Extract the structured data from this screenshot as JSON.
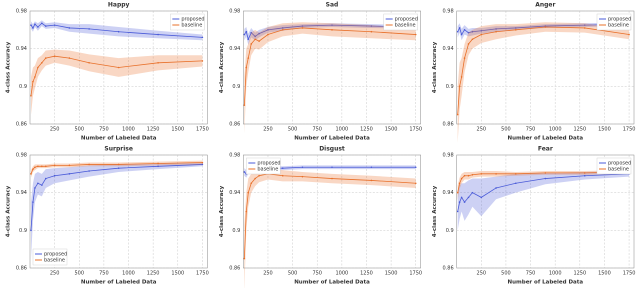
{
  "chart_data": [
    {
      "type": "line",
      "title": "Happy",
      "xlabel": "Number of Labeled Data",
      "ylabel": "4-class Accuracy",
      "x": [
        10,
        30,
        50,
        80,
        120,
        160,
        250,
        400,
        600,
        900,
        1300,
        1750
      ],
      "xlim": [
        0,
        1800
      ],
      "xticks": [
        250,
        500,
        750,
        1000,
        1250,
        1500,
        1750
      ],
      "ylim": [
        0.86,
        0.98
      ],
      "yticks": [
        0.86,
        0.9,
        0.94,
        0.98
      ],
      "grid": true,
      "legend": "upper right",
      "series": [
        {
          "name": "proposed",
          "color": "#4a5bd8",
          "values": [
            0.965,
            0.962,
            0.966,
            0.963,
            0.967,
            0.964,
            0.965,
            0.962,
            0.961,
            0.958,
            0.955,
            0.952
          ],
          "error": [
            0.004,
            0.004,
            0.003,
            0.004,
            0.003,
            0.003,
            0.003,
            0.004,
            0.005,
            0.005,
            0.004,
            0.003
          ]
        },
        {
          "name": "baseline",
          "color": "#e8702a",
          "values": [
            0.89,
            0.905,
            0.91,
            0.92,
            0.925,
            0.93,
            0.932,
            0.93,
            0.925,
            0.92,
            0.925,
            0.927
          ],
          "error": [
            0.02,
            0.015,
            0.012,
            0.01,
            0.008,
            0.008,
            0.007,
            0.008,
            0.009,
            0.01,
            0.008,
            0.006
          ]
        }
      ]
    },
    {
      "type": "line",
      "title": "Sad",
      "xlabel": "Number of Labeled Data",
      "ylabel": "4-class Accuracy",
      "x": [
        10,
        30,
        50,
        80,
        120,
        160,
        250,
        400,
        600,
        900,
        1300,
        1750
      ],
      "xlim": [
        0,
        1800
      ],
      "xticks": [
        250,
        500,
        750,
        1000,
        1250,
        1500,
        1750
      ],
      "ylim": [
        0.86,
        0.98
      ],
      "yticks": [
        0.86,
        0.9,
        0.94,
        0.98
      ],
      "grid": true,
      "legend": "upper right",
      "series": [
        {
          "name": "proposed",
          "color": "#4a5bd8",
          "values": [
            0.955,
            0.958,
            0.95,
            0.957,
            0.953,
            0.956,
            0.96,
            0.962,
            0.964,
            0.965,
            0.964,
            0.963
          ],
          "error": [
            0.006,
            0.005,
            0.006,
            0.005,
            0.004,
            0.004,
            0.003,
            0.003,
            0.002,
            0.002,
            0.002,
            0.002
          ]
        },
        {
          "name": "baseline",
          "color": "#e8702a",
          "values": [
            0.88,
            0.92,
            0.93,
            0.945,
            0.95,
            0.948,
            0.955,
            0.96,
            0.962,
            0.96,
            0.958,
            0.955
          ],
          "error": [
            0.03,
            0.02,
            0.015,
            0.012,
            0.01,
            0.009,
            0.008,
            0.007,
            0.006,
            0.007,
            0.007,
            0.006
          ]
        }
      ]
    },
    {
      "type": "line",
      "title": "Anger",
      "xlabel": "Number of Labeled Data",
      "ylabel": "4-class Accuracy",
      "x": [
        10,
        30,
        50,
        80,
        120,
        160,
        250,
        400,
        600,
        900,
        1300,
        1750
      ],
      "xlim": [
        0,
        1800
      ],
      "xticks": [
        250,
        500,
        750,
        1000,
        1250,
        1500,
        1750
      ],
      "ylim": [
        0.86,
        0.98
      ],
      "yticks": [
        0.86,
        0.9,
        0.94,
        0.98
      ],
      "grid": true,
      "legend": "upper right",
      "series": [
        {
          "name": "proposed",
          "color": "#4a5bd8",
          "values": [
            0.958,
            0.962,
            0.955,
            0.96,
            0.957,
            0.958,
            0.959,
            0.961,
            0.962,
            0.964,
            0.965,
            0.966
          ],
          "error": [
            0.006,
            0.005,
            0.006,
            0.005,
            0.004,
            0.004,
            0.003,
            0.003,
            0.002,
            0.002,
            0.002,
            0.002
          ]
        },
        {
          "name": "baseline",
          "color": "#e8702a",
          "values": [
            0.87,
            0.9,
            0.91,
            0.93,
            0.945,
            0.95,
            0.955,
            0.958,
            0.96,
            0.963,
            0.962,
            0.955
          ],
          "error": [
            0.03,
            0.025,
            0.02,
            0.015,
            0.012,
            0.01,
            0.009,
            0.008,
            0.006,
            0.005,
            0.005,
            0.005
          ]
        }
      ]
    },
    {
      "type": "line",
      "title": "Surprise",
      "xlabel": "Number of Labeled Data",
      "ylabel": "4-class Accuracy",
      "x": [
        10,
        30,
        50,
        80,
        120,
        160,
        250,
        400,
        600,
        900,
        1300,
        1750
      ],
      "xlim": [
        0,
        1800
      ],
      "xticks": [
        250,
        500,
        750,
        1000,
        1250,
        1500,
        1750
      ],
      "ylim": [
        0.86,
        0.98
      ],
      "yticks": [
        0.86,
        0.9,
        0.94,
        0.98
      ],
      "grid": true,
      "legend": "lower left",
      "series": [
        {
          "name": "proposed",
          "color": "#4a5bd8",
          "values": [
            0.9,
            0.93,
            0.945,
            0.95,
            0.948,
            0.955,
            0.958,
            0.96,
            0.963,
            0.966,
            0.968,
            0.97
          ],
          "error": [
            0.03,
            0.02,
            0.015,
            0.012,
            0.012,
            0.01,
            0.008,
            0.007,
            0.006,
            0.004,
            0.003,
            0.002
          ]
        },
        {
          "name": "baseline",
          "color": "#e8702a",
          "values": [
            0.96,
            0.965,
            0.967,
            0.968,
            0.968,
            0.968,
            0.969,
            0.969,
            0.97,
            0.97,
            0.971,
            0.972
          ],
          "error": [
            0.004,
            0.003,
            0.003,
            0.002,
            0.002,
            0.002,
            0.002,
            0.002,
            0.002,
            0.002,
            0.002,
            0.002
          ]
        }
      ]
    },
    {
      "type": "line",
      "title": "Disgust",
      "xlabel": "Number of Labeled Data",
      "ylabel": "4-class Accuracy",
      "x": [
        10,
        30,
        50,
        80,
        120,
        160,
        250,
        400,
        600,
        900,
        1300,
        1750
      ],
      "xlim": [
        0,
        1800
      ],
      "xticks": [
        250,
        500,
        750,
        1000,
        1250,
        1500,
        1750
      ],
      "ylim": [
        0.86,
        0.98
      ],
      "yticks": [
        0.86,
        0.9,
        0.94,
        0.98
      ],
      "grid": true,
      "legend": "upper left",
      "series": [
        {
          "name": "proposed",
          "color": "#4a5bd8",
          "values": [
            0.962,
            0.96,
            0.963,
            0.964,
            0.965,
            0.965,
            0.966,
            0.966,
            0.967,
            0.967,
            0.967,
            0.967
          ],
          "error": [
            0.004,
            0.004,
            0.003,
            0.003,
            0.003,
            0.002,
            0.002,
            0.002,
            0.002,
            0.002,
            0.002,
            0.002
          ]
        },
        {
          "name": "baseline",
          "color": "#e8702a",
          "values": [
            0.87,
            0.92,
            0.94,
            0.95,
            0.955,
            0.958,
            0.96,
            0.958,
            0.957,
            0.955,
            0.953,
            0.95
          ],
          "error": [
            0.035,
            0.02,
            0.015,
            0.01,
            0.008,
            0.007,
            0.006,
            0.006,
            0.005,
            0.005,
            0.005,
            0.005
          ]
        }
      ]
    },
    {
      "type": "line",
      "title": "Fear",
      "xlabel": "Number of Labeled Data",
      "ylabel": "4-class Accuracy",
      "x": [
        10,
        30,
        50,
        80,
        120,
        160,
        250,
        400,
        600,
        900,
        1300,
        1750
      ],
      "xlim": [
        0,
        1800
      ],
      "xticks": [
        250,
        500,
        750,
        1000,
        1250,
        1500,
        1750
      ],
      "ylim": [
        0.86,
        0.98
      ],
      "yticks": [
        0.86,
        0.9,
        0.94,
        0.98
      ],
      "grid": true,
      "legend": "upper right",
      "series": [
        {
          "name": "proposed",
          "color": "#4a5bd8",
          "values": [
            0.92,
            0.93,
            0.935,
            0.93,
            0.935,
            0.94,
            0.935,
            0.945,
            0.95,
            0.955,
            0.958,
            0.96
          ],
          "error": [
            0.02,
            0.018,
            0.015,
            0.02,
            0.018,
            0.015,
            0.02,
            0.012,
            0.01,
            0.006,
            0.004,
            0.003
          ]
        },
        {
          "name": "baseline",
          "color": "#e8702a",
          "values": [
            0.94,
            0.95,
            0.955,
            0.958,
            0.958,
            0.959,
            0.96,
            0.96,
            0.96,
            0.961,
            0.961,
            0.962
          ],
          "error": [
            0.008,
            0.006,
            0.005,
            0.004,
            0.004,
            0.003,
            0.003,
            0.003,
            0.002,
            0.002,
            0.002,
            0.002
          ]
        }
      ]
    }
  ]
}
